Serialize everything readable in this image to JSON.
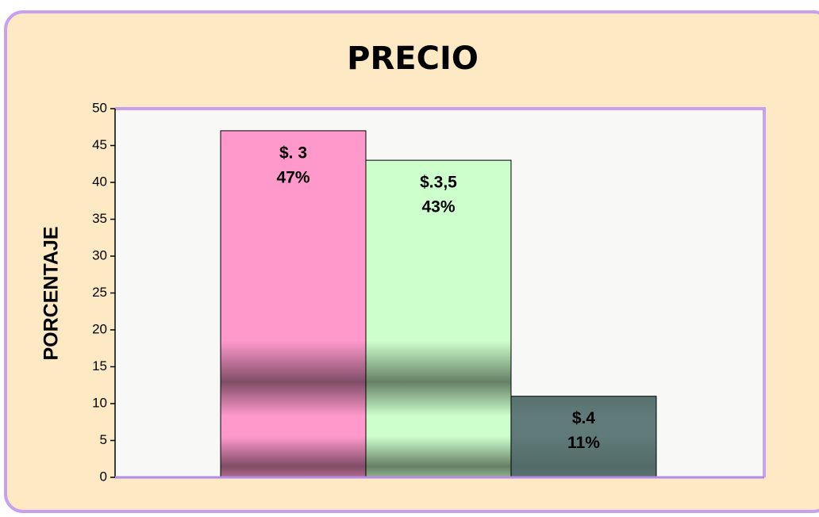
{
  "chart_data": {
    "type": "bar",
    "title": "PRECIO",
    "ylabel": "PORCENTAJE",
    "categories": [
      "$. 3",
      "$.3,5",
      "$.4"
    ],
    "values": [
      47,
      43,
      11
    ],
    "value_labels": [
      "47%",
      "43%",
      "11%"
    ],
    "colors": [
      "#ff99cc",
      "#ccffcc",
      "#5f7a78"
    ],
    "ylim": [
      0,
      50
    ],
    "yticks": [
      0,
      5,
      10,
      15,
      20,
      25,
      30,
      35,
      40,
      45,
      50
    ],
    "grid": false
  }
}
